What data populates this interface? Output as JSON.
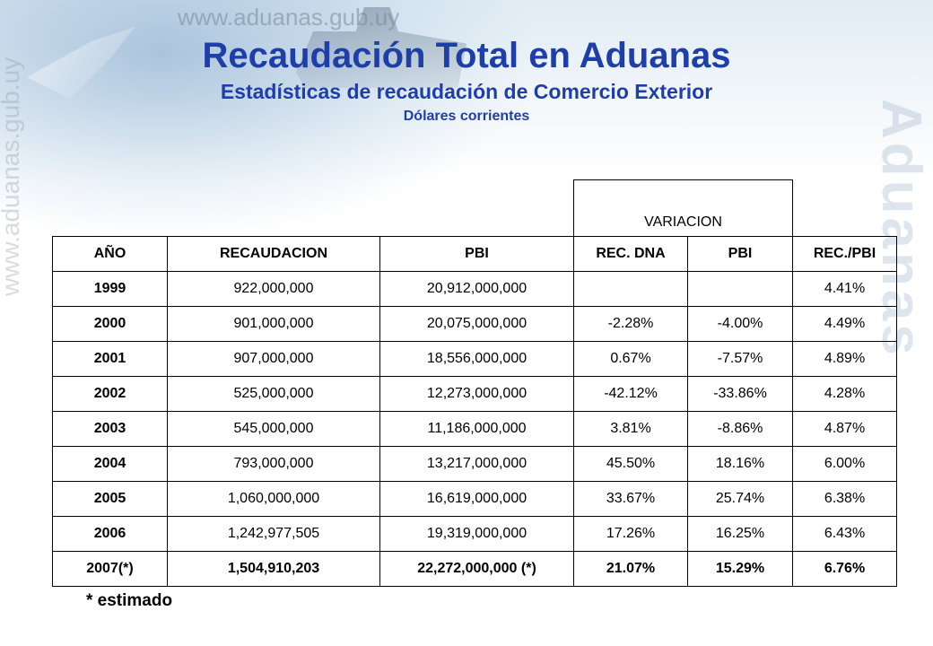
{
  "header": {
    "watermark_url": "www.aduanas.gub.uy",
    "watermark_brand": "Aduanas",
    "title": "Recaudación Total en Aduanas",
    "subtitle": "Estadísticas de recaudación de Comercio Exterior",
    "units": "Dólares corrientes"
  },
  "table": {
    "group_header": "VARIACION",
    "columns": [
      "AÑO",
      "RECAUDACION",
      "PBI",
      "REC. DNA",
      "PBI",
      "REC./PBI"
    ],
    "rows": [
      [
        "1999",
        "922,000,000",
        "20,912,000,000",
        "",
        "",
        "4.41%"
      ],
      [
        "2000",
        "901,000,000",
        "20,075,000,000",
        "-2.28%",
        "-4.00%",
        "4.49%"
      ],
      [
        "2001",
        "907,000,000",
        "18,556,000,000",
        "0.67%",
        "-7.57%",
        "4.89%"
      ],
      [
        "2002",
        "525,000,000",
        "12,273,000,000",
        "-42.12%",
        "-33.86%",
        "4.28%"
      ],
      [
        "2003",
        "545,000,000",
        "11,186,000,000",
        "3.81%",
        "-8.86%",
        "4.87%"
      ],
      [
        "2004",
        "793,000,000",
        "13,217,000,000",
        "45.50%",
        "18.16%",
        "6.00%"
      ],
      [
        "2005",
        "1,060,000,000",
        "16,619,000,000",
        "33.67%",
        "25.74%",
        "6.38%"
      ],
      [
        "2006",
        "1,242,977,505",
        "19,319,000,000",
        "17.26%",
        "16.25%",
        "6.43%"
      ],
      [
        "2007(*)",
        "1,504,910,203",
        "22,272,000,000 (*)",
        "21.07%",
        "15.29%",
        "6.76%"
      ]
    ]
  },
  "footnote": "* estimado",
  "colors": {
    "title": "#1f3fa8",
    "text": "#000000",
    "border": "#000000"
  }
}
